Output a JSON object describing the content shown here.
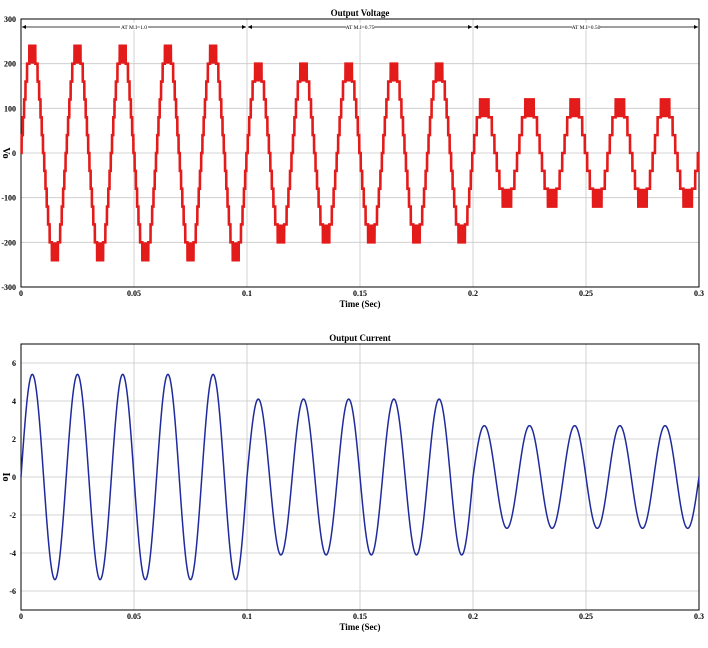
{
  "chart_data": [
    {
      "type": "line",
      "title": "Output Voltage",
      "xlabel": "Time (Sec)",
      "ylabel": "Vo",
      "xlim": [
        0,
        0.3
      ],
      "ylim": [
        -300,
        300
      ],
      "xticks": [
        0,
        0.05,
        0.1,
        0.15,
        0.2,
        0.25,
        0.3
      ],
      "xtick_labels": [
        "0",
        "0.05",
        "0.1",
        "0.15",
        "0.2",
        "0.25",
        "0.3"
      ],
      "yticks": [
        300,
        200,
        100,
        0,
        -100,
        -200,
        -300
      ],
      "ytick_labels": [
        "300",
        "200",
        "100",
        "0",
        "-100",
        "-200",
        "-300"
      ],
      "grid": true,
      "color": "#e41b1b",
      "waveform": "multilevel staircase",
      "frequency_hz": 50,
      "segments": [
        {
          "t_start": 0.0,
          "t_end": 0.1,
          "label": "AT M.I=1.0",
          "peak": 240,
          "levels": [
            0,
            40,
            80,
            120,
            160,
            200,
            240
          ]
        },
        {
          "t_start": 0.1,
          "t_end": 0.2,
          "label": "AT M.I=0.75",
          "peak": 200,
          "levels": [
            0,
            40,
            80,
            120,
            160,
            200
          ]
        },
        {
          "t_start": 0.2,
          "t_end": 0.3,
          "label": "AT M.I=0.50",
          "peak": 120,
          "levels": [
            0,
            40,
            80,
            120
          ]
        }
      ]
    },
    {
      "type": "line",
      "title": "Output Current",
      "xlabel": "Time (Sec)",
      "ylabel": "Io",
      "xlim": [
        0,
        0.3
      ],
      "ylim": [
        -7,
        7
      ],
      "xticks": [
        0,
        0.05,
        0.1,
        0.15,
        0.2,
        0.25,
        0.3
      ],
      "xtick_labels": [
        "0",
        "0.05",
        "0.1",
        "0.15",
        "0.2",
        "0.25",
        "0.3"
      ],
      "yticks": [
        6,
        4,
        2,
        0,
        -2,
        -4,
        -6
      ],
      "ytick_labels": [
        "6",
        "4",
        "2",
        "0",
        "-2",
        "-4",
        "-6"
      ],
      "grid": true,
      "color": "#1f2a9c",
      "waveform": "sine",
      "frequency_hz": 50,
      "segments": [
        {
          "t_start": 0.0,
          "t_end": 0.1,
          "amplitude": 5.4
        },
        {
          "t_start": 0.1,
          "t_end": 0.2,
          "amplitude": 4.1
        },
        {
          "t_start": 0.2,
          "t_end": 0.3,
          "amplitude": 2.7
        }
      ]
    }
  ]
}
